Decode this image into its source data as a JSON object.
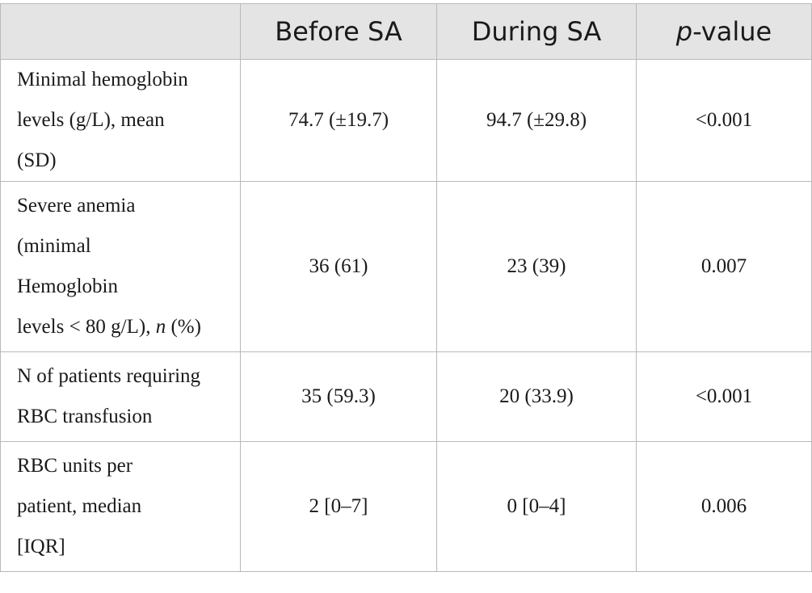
{
  "table": {
    "headers": {
      "before": "Before SA",
      "during": "During SA",
      "pvalue_italic": "p",
      "pvalue_rest": "-value"
    },
    "rows": [
      {
        "label_lines": [
          "Minimal hemoglobin",
          "levels (g/L), mean",
          "(SD)"
        ],
        "before": "74.7 (±19.7)",
        "during": "94.7 (±29.8)",
        "pvalue": "<0.001"
      },
      {
        "label_lines": [
          "Severe anemia",
          "(minimal",
          "Hemoglobin"
        ],
        "label_last_prefix": "levels < 80 g/L), ",
        "label_last_italic": "n",
        "label_last_suffix": " (%)",
        "before": "36 (61)",
        "during": "23 (39)",
        "pvalue": "0.007"
      },
      {
        "label_lines": [
          "N of patients requiring",
          "RBC transfusion"
        ],
        "before": "35 (59.3)",
        "during": "20 (33.9)",
        "pvalue": "<0.001"
      },
      {
        "label_lines": [
          "RBC units per",
          "patient, median",
          "[IQR]"
        ],
        "before": "2 [0–7]",
        "during": "0 [0–4]",
        "pvalue": "0.006"
      }
    ]
  }
}
